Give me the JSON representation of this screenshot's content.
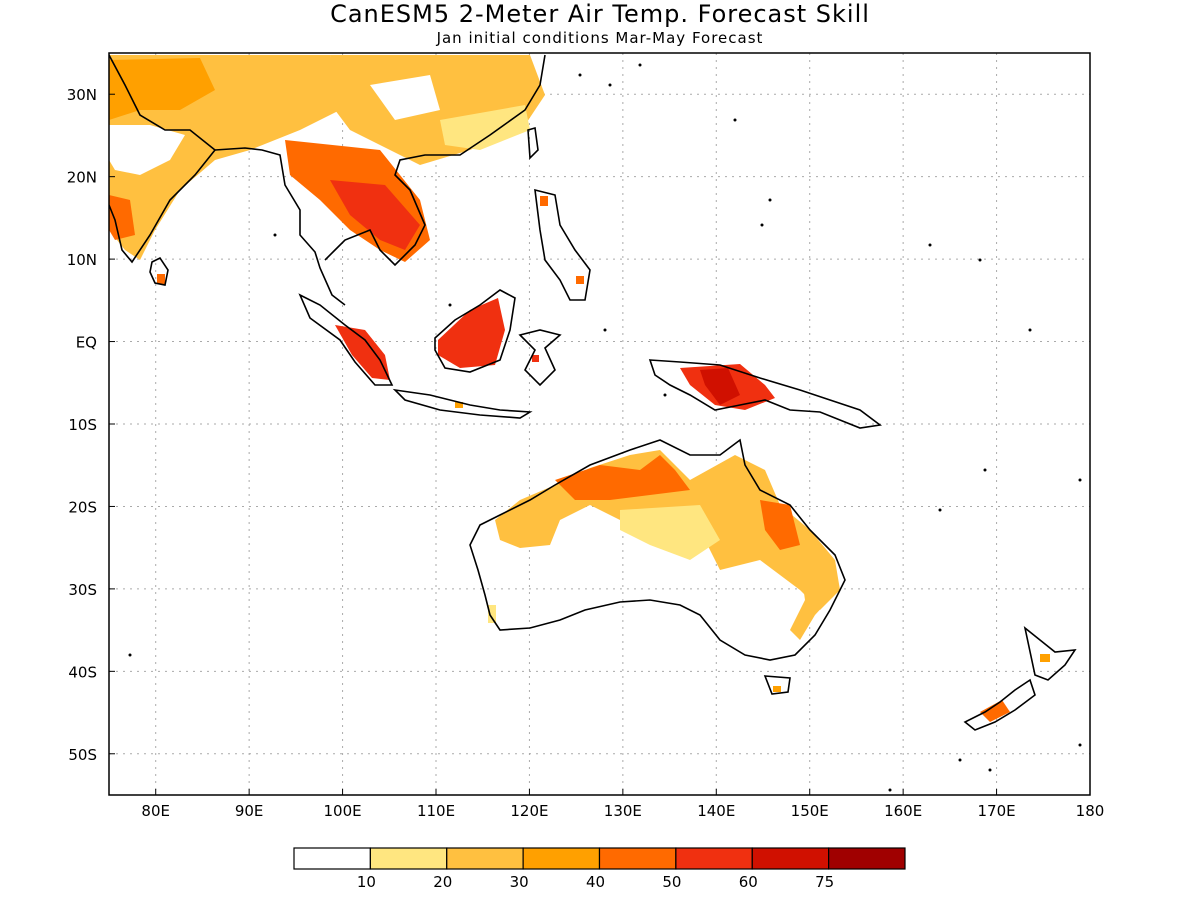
{
  "title": "CanESM5 2-Meter Air Temp. Forecast Skill",
  "subtitle": "Jan initial conditions  Mar-May Forecast",
  "map": {
    "lon_range": [
      75,
      180
    ],
    "lat_range": [
      -55,
      35
    ],
    "lon_ticks": [
      "80E",
      "90E",
      "100E",
      "110E",
      "120E",
      "130E",
      "140E",
      "150E",
      "160E",
      "170E",
      "180"
    ],
    "lat_ticks": [
      "30N",
      "20N",
      "10N",
      "EQ",
      "10S",
      "20S",
      "30S",
      "40S",
      "50S"
    ],
    "gridlines": "dotted"
  },
  "colorbar": {
    "labels": [
      "10",
      "20",
      "30",
      "40",
      "50",
      "60",
      "75"
    ],
    "colors": [
      "#ffffff",
      "#ffe680",
      "#ffc040",
      "#ffa000",
      "#ff6a00",
      "#f03010",
      "#d01000",
      "#a00000"
    ]
  }
}
